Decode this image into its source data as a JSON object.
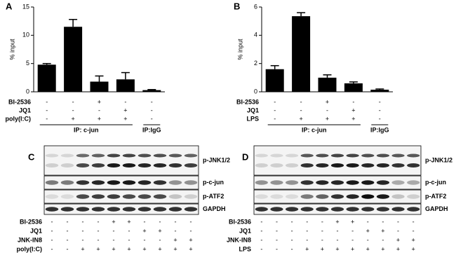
{
  "chart_data": [
    {
      "type": "bar",
      "panel": "A",
      "ylabel": "% input",
      "categories": [
        null,
        null,
        null,
        null,
        null
      ],
      "values": [
        4.8,
        11.5,
        1.8,
        2.2,
        0.3
      ],
      "errors": [
        0.2,
        1.3,
        1.0,
        1.2,
        0.1
      ],
      "color": "#000000",
      "ylim": [
        0,
        15
      ],
      "yticks": [
        0,
        5,
        10,
        15
      ],
      "treatments": [
        {
          "label": "BI-2536",
          "signs": [
            "-",
            "-",
            "+",
            "-",
            "-"
          ]
        },
        {
          "label": "JQ1",
          "signs": [
            "-",
            "-",
            "-",
            "+",
            "-"
          ]
        },
        {
          "label": "poly(I:C)",
          "signs": [
            "-",
            "+",
            "+",
            "+",
            "-"
          ]
        }
      ],
      "groups": [
        "IP: c-jun",
        "IP:IgG"
      ]
    },
    {
      "type": "bar",
      "panel": "B",
      "ylabel": "% input",
      "categories": [
        null,
        null,
        null,
        null,
        null
      ],
      "values": [
        1.6,
        5.35,
        1.0,
        0.6,
        0.15
      ],
      "errors": [
        0.25,
        0.25,
        0.2,
        0.1,
        0.05
      ],
      "color": "#000000",
      "ylim": [
        0,
        6
      ],
      "yticks": [
        0,
        2,
        4,
        6
      ],
      "treatments": [
        {
          "label": "BI-2536",
          "signs": [
            "-",
            "-",
            "+",
            "-",
            "-"
          ]
        },
        {
          "label": "JQ1",
          "signs": [
            "-",
            "-",
            "-",
            "+",
            "-"
          ]
        },
        {
          "label": "LPS",
          "signs": [
            "-",
            "+",
            "+",
            "+",
            "-"
          ]
        }
      ],
      "groups": [
        "IP: c-jun",
        "IP:IgG"
      ]
    }
  ],
  "blots": [
    {
      "panel": "C",
      "rows": [
        "p-JNK1/2",
        "p-c-jun",
        "p-ATF2",
        "GAPDH"
      ],
      "treatments": [
        {
          "label": "BI-2536",
          "signs": [
            "-",
            "-",
            "-",
            "-",
            "+",
            "+",
            "-",
            "-",
            "-",
            "-"
          ]
        },
        {
          "label": "JQ1",
          "signs": [
            "-",
            "-",
            "-",
            "-",
            "-",
            "-",
            "+",
            "+",
            "-",
            "-"
          ]
        },
        {
          "label": "JNK-IN8",
          "signs": [
            "-",
            "-",
            "-",
            "-",
            "-",
            "-",
            "-",
            "-",
            "+",
            "+"
          ]
        },
        {
          "label": "poly(I:C)",
          "signs": [
            "-",
            "-",
            "+",
            "+",
            "+",
            "+",
            "+",
            "+",
            "+",
            "+"
          ]
        }
      ]
    },
    {
      "panel": "D",
      "rows": [
        "p-JNK1/2",
        "p-c-jun",
        "p-ATF2",
        "GAPDH"
      ],
      "treatments": [
        {
          "label": "BI-2536",
          "signs": [
            "-",
            "-",
            "-",
            "-",
            "-",
            "+",
            "+",
            "-",
            "-",
            "-",
            "-"
          ]
        },
        {
          "label": "JQ1",
          "signs": [
            "-",
            "-",
            "-",
            "-",
            "-",
            "-",
            "-",
            "+",
            "+",
            "-",
            "-"
          ]
        },
        {
          "label": "JNK-IN8",
          "signs": [
            "-",
            "-",
            "-",
            "-",
            "-",
            "-",
            "-",
            "-",
            "-",
            "+",
            "+"
          ]
        },
        {
          "label": "LPS",
          "signs": [
            "-",
            "-",
            "-",
            "+",
            "+",
            "+",
            "+",
            "+",
            "+",
            "+",
            "+"
          ]
        }
      ]
    }
  ]
}
